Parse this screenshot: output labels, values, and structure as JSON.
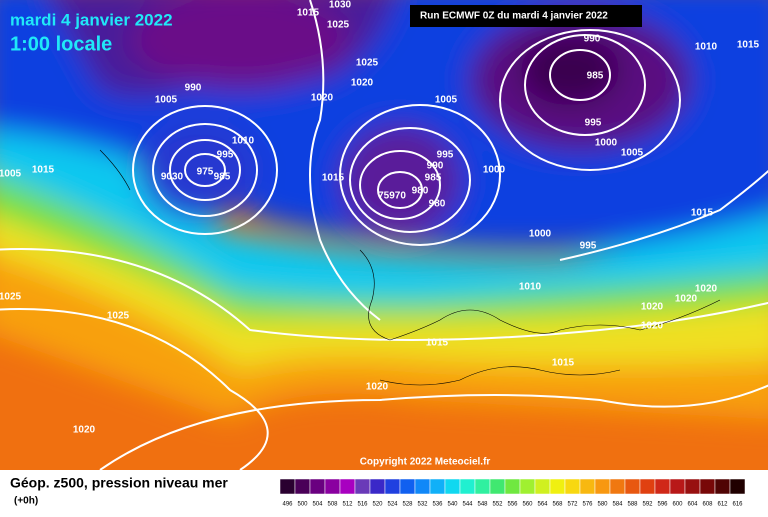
{
  "header": {
    "date": "mardi 4 janvier 2022",
    "time": "1:00 locale",
    "run": "Run ECMWF 0Z du mardi 4 janvier 2022"
  },
  "copyright": "Copyright 2022 Meteociel.fr",
  "legend": {
    "title": "Géop. z500, pression niveau mer",
    "subtitle": "(+0h)",
    "ticks": [
      496,
      500,
      504,
      508,
      512,
      516,
      520,
      524,
      528,
      532,
      536,
      540,
      544,
      548,
      552,
      556,
      560,
      564,
      568,
      572,
      576,
      580,
      584,
      588,
      592,
      596,
      600,
      604,
      608,
      612,
      616
    ],
    "colors": [
      "#2a0030",
      "#4a0058",
      "#6a0080",
      "#8a00a0",
      "#a800c0",
      "#6a3ab8",
      "#3a28c8",
      "#2040e0",
      "#1060f0",
      "#1088f8",
      "#10b0f8",
      "#10d8f0",
      "#20f0d0",
      "#30f0a0",
      "#40e870",
      "#70e840",
      "#a0f030",
      "#d0f020",
      "#f0f010",
      "#f8d810",
      "#f8b810",
      "#f89810",
      "#f07810",
      "#e85810",
      "#e04010",
      "#d02818",
      "#b81818",
      "#981010",
      "#780808",
      "#500404",
      "#200000"
    ]
  },
  "isobars": [
    1015,
    1030,
    1025,
    1025,
    1020,
    1020,
    990,
    1005,
    1005,
    990,
    985,
    995,
    1000,
    1005,
    1010,
    1015,
    1005,
    1015,
    1010,
    995,
    975,
    9030,
    985,
    1015,
    995,
    990,
    985,
    1000,
    75970,
    980,
    980,
    1000,
    995,
    1015,
    1010,
    1020,
    1020,
    1020,
    1020,
    1025,
    1025,
    1015,
    1015,
    1020,
    1020
  ]
}
